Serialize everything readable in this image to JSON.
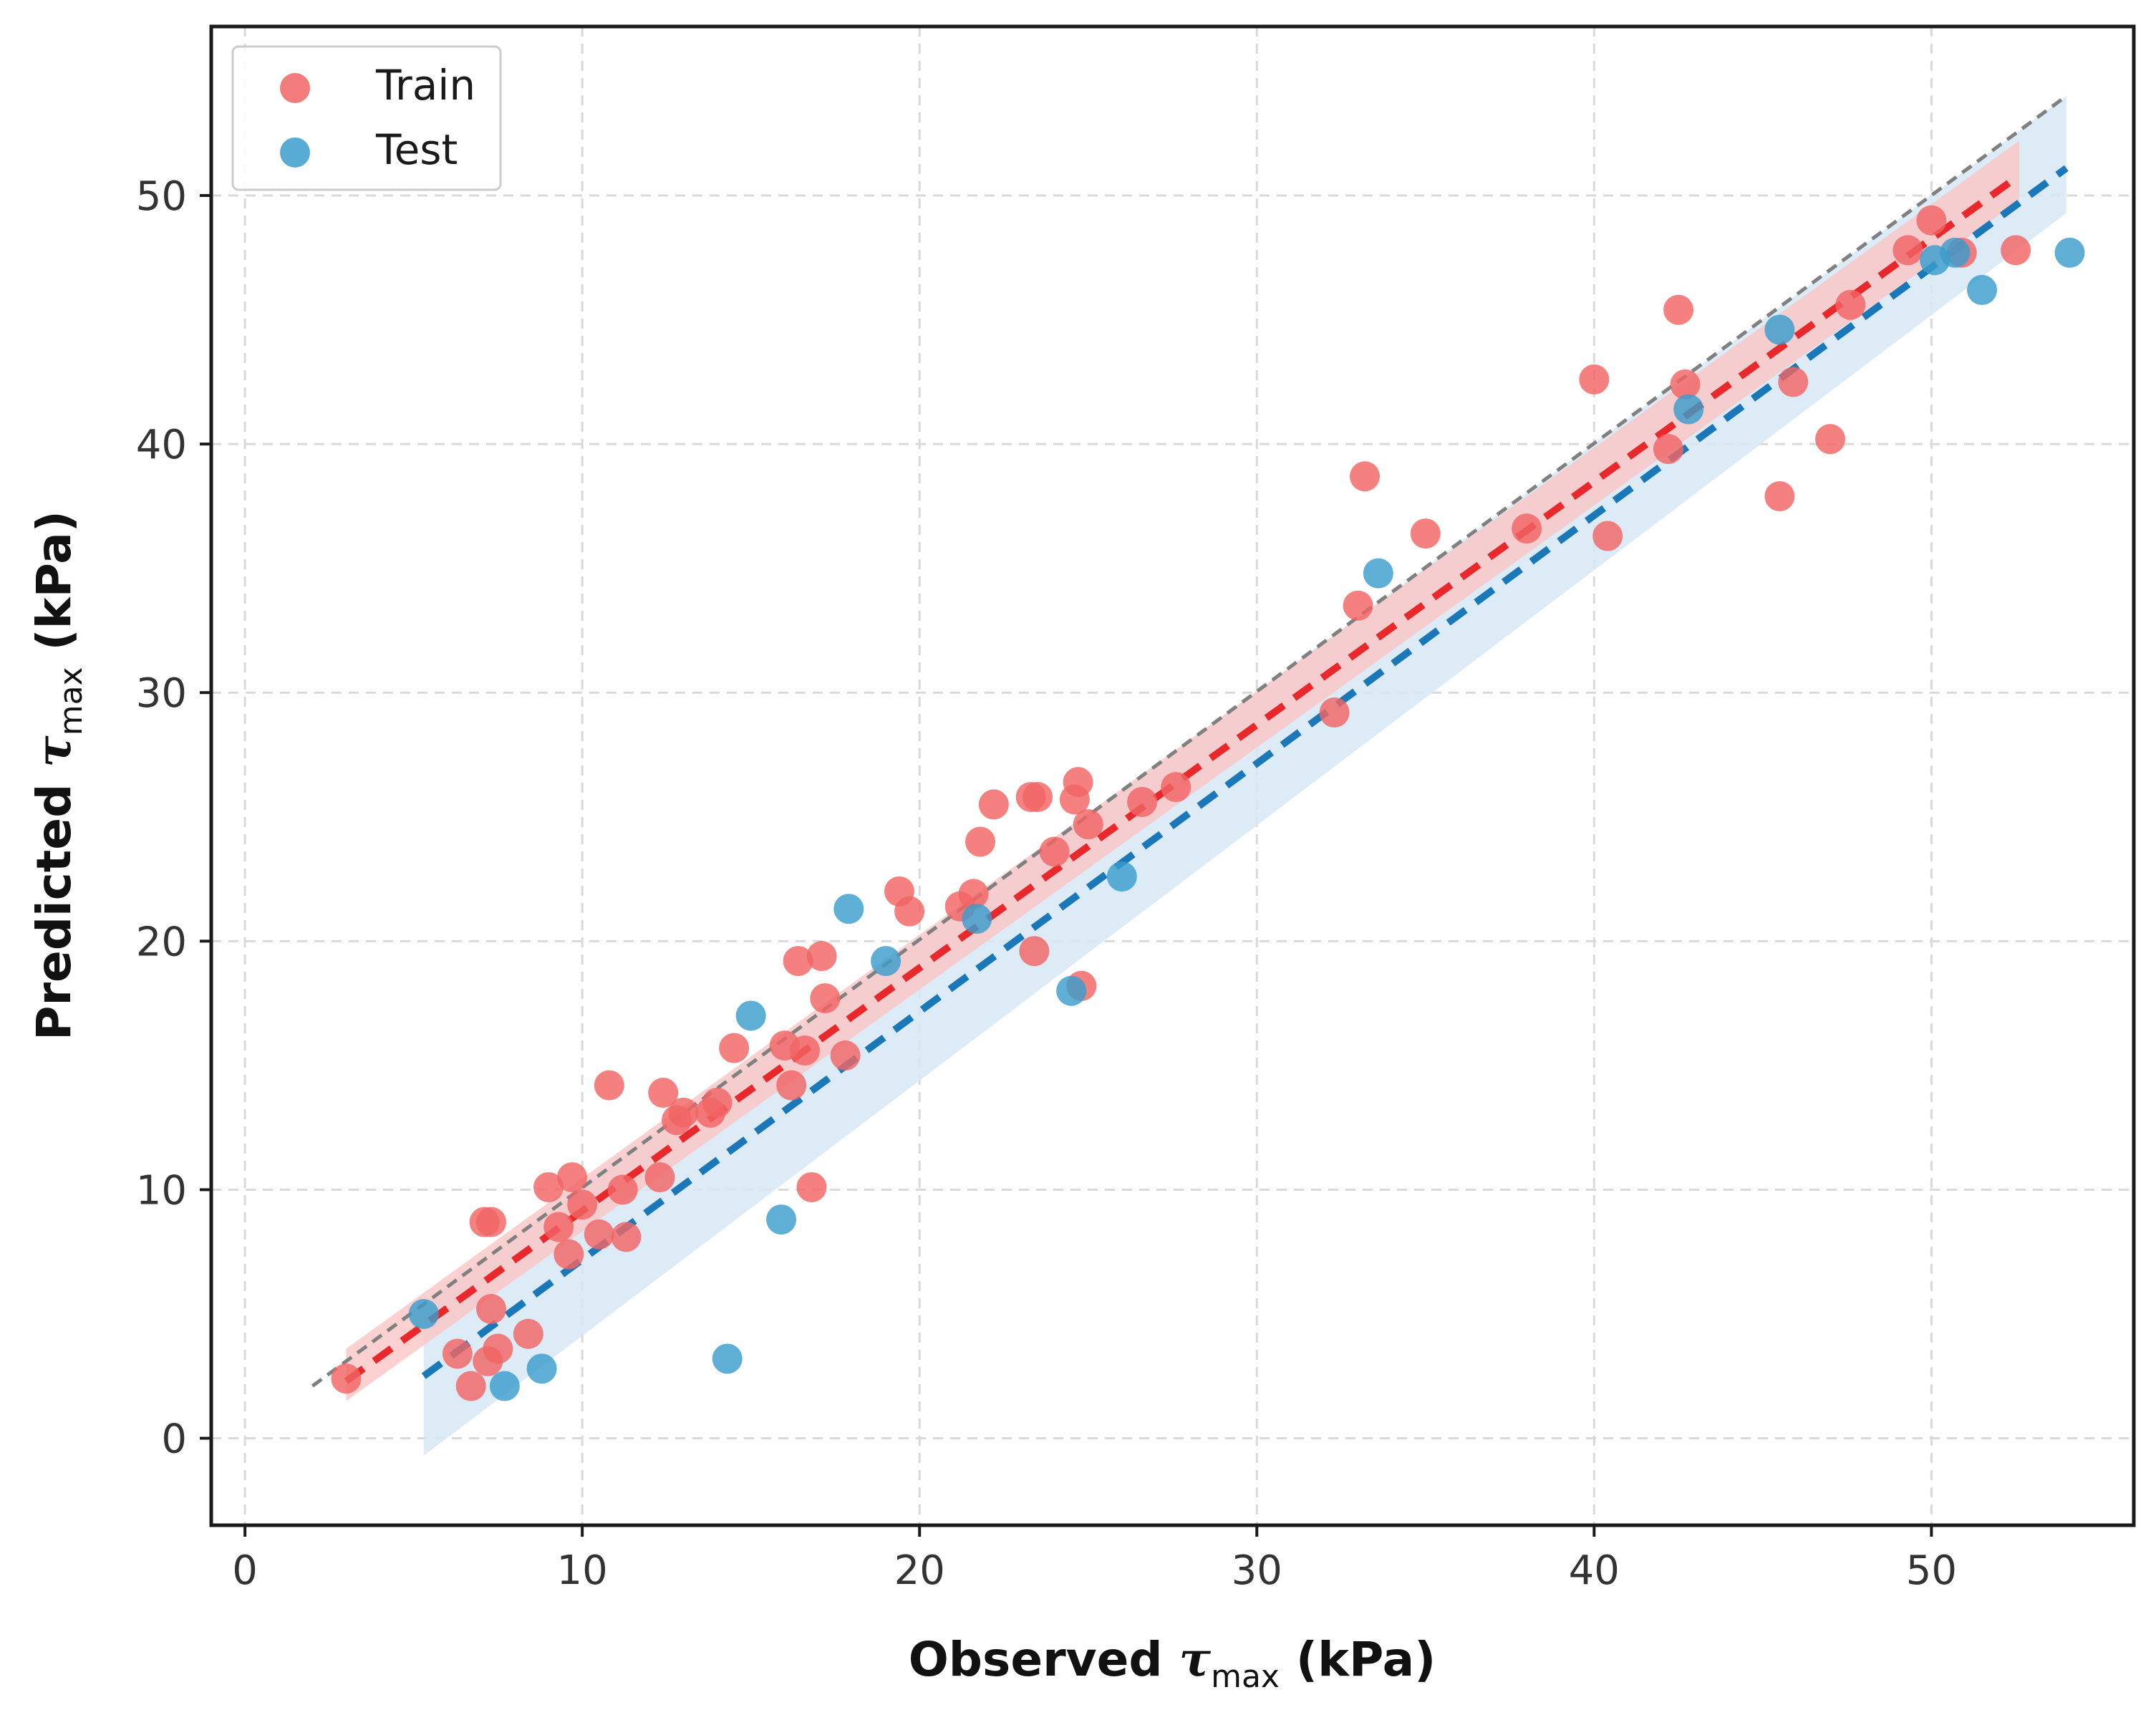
{
  "chart_data": {
    "type": "scatter",
    "title": "",
    "xlabel": {
      "main": "Observed ",
      "symbol": "τ",
      "sub": "max",
      "unit": " (kPa)"
    },
    "ylabel": {
      "main": "Predicted ",
      "symbol": "τ",
      "sub": "max",
      "unit": " (kPa)"
    },
    "xlim": [
      -1,
      56
    ],
    "ylim": [
      -3.5,
      56.8
    ],
    "xticks": [
      0,
      10,
      20,
      30,
      40,
      50
    ],
    "yticks": [
      0,
      10,
      20,
      30,
      40,
      50
    ],
    "xtick_labels": [
      "0",
      "10",
      "20",
      "30",
      "40",
      "50"
    ],
    "ytick_labels": [
      "0",
      "10",
      "20",
      "30",
      "40",
      "50"
    ],
    "grid": true,
    "legend_position": "top-left",
    "legend": [
      {
        "label": "Train",
        "color": "#f26464"
      },
      {
        "label": "Test",
        "color": "#3a9ccc"
      }
    ],
    "identity_line": {
      "x": [
        2,
        54
      ],
      "y": [
        2.1,
        54
      ],
      "color": "#808080"
    },
    "series": [
      {
        "name": "Train",
        "color": "#f26464",
        "fit": {
          "x": [
            3,
            52.6
          ],
          "y": [
            2.3,
            50.8
          ],
          "color": "#e8282a"
        },
        "band": {
          "x": [
            3,
            52.6
          ],
          "lower": [
            1.5,
            49.8
          ],
          "upper": [
            3.6,
            52.2
          ],
          "color": "#f9c8c8"
        },
        "points": [
          [
            3.0,
            2.4
          ],
          [
            6.3,
            3.4
          ],
          [
            6.7,
            2.1
          ],
          [
            7.1,
            8.7
          ],
          [
            7.3,
            8.7
          ],
          [
            7.2,
            3.1
          ],
          [
            7.5,
            3.6
          ],
          [
            7.3,
            5.2
          ],
          [
            8.4,
            4.2
          ],
          [
            9.0,
            10.1
          ],
          [
            9.3,
            8.5
          ],
          [
            9.6,
            7.4
          ],
          [
            9.7,
            10.5
          ],
          [
            10.0,
            9.4
          ],
          [
            10.5,
            8.2
          ],
          [
            10.8,
            14.2
          ],
          [
            11.2,
            10.0
          ],
          [
            11.3,
            8.1
          ],
          [
            12.3,
            10.5
          ],
          [
            12.4,
            13.9
          ],
          [
            12.8,
            12.8
          ],
          [
            13.0,
            13.1
          ],
          [
            13.8,
            13.1
          ],
          [
            14.0,
            13.5
          ],
          [
            14.5,
            15.7
          ],
          [
            16.0,
            15.8
          ],
          [
            16.2,
            14.2
          ],
          [
            16.4,
            19.2
          ],
          [
            16.6,
            15.6
          ],
          [
            16.8,
            10.1
          ],
          [
            17.1,
            19.4
          ],
          [
            17.2,
            17.7
          ],
          [
            17.8,
            15.4
          ],
          [
            19.4,
            22.0
          ],
          [
            19.7,
            21.2
          ],
          [
            21.2,
            21.4
          ],
          [
            21.6,
            21.9
          ],
          [
            21.8,
            24.0
          ],
          [
            22.2,
            25.5
          ],
          [
            23.3,
            25.8
          ],
          [
            23.5,
            25.8
          ],
          [
            23.4,
            19.6
          ],
          [
            24.0,
            23.6
          ],
          [
            24.6,
            25.7
          ],
          [
            24.7,
            26.4
          ],
          [
            24.8,
            18.2
          ],
          [
            25.0,
            24.7
          ],
          [
            26.6,
            25.6
          ],
          [
            27.6,
            26.2
          ],
          [
            32.3,
            29.2
          ],
          [
            33.0,
            33.5
          ],
          [
            33.2,
            38.7
          ],
          [
            35.0,
            36.4
          ],
          [
            38.0,
            36.6
          ],
          [
            40.0,
            42.6
          ],
          [
            40.4,
            36.3
          ],
          [
            42.2,
            39.8
          ],
          [
            42.5,
            45.4
          ],
          [
            42.7,
            42.4
          ],
          [
            45.5,
            37.9
          ],
          [
            45.9,
            42.5
          ],
          [
            47.0,
            40.2
          ],
          [
            47.6,
            45.6
          ],
          [
            49.3,
            47.8
          ],
          [
            50.0,
            49.0
          ],
          [
            50.9,
            47.7
          ],
          [
            52.5,
            47.8
          ]
        ]
      },
      {
        "name": "Test",
        "color": "#3a9ccc",
        "fit": {
          "x": [
            5.3,
            54.0
          ],
          "y": [
            2.5,
            51.1
          ],
          "color": "#1a78b8"
        },
        "band": {
          "x": [
            5.3,
            54.0
          ],
          "lower": [
            -0.7,
            49.3
          ],
          "upper": [
            5.4,
            54.0
          ],
          "color": "#d6e8f4"
        },
        "points": [
          [
            5.3,
            5.0
          ],
          [
            7.7,
            2.1
          ],
          [
            8.8,
            2.8
          ],
          [
            14.3,
            3.2
          ],
          [
            15.0,
            17.0
          ],
          [
            15.9,
            8.8
          ],
          [
            17.9,
            21.3
          ],
          [
            19.0,
            19.2
          ],
          [
            21.7,
            20.9
          ],
          [
            24.5,
            18.0
          ],
          [
            26.0,
            22.6
          ],
          [
            33.6,
            34.8
          ],
          [
            42.8,
            41.4
          ],
          [
            45.5,
            44.6
          ],
          [
            50.1,
            47.4
          ],
          [
            50.7,
            47.7
          ],
          [
            51.5,
            46.2
          ],
          [
            54.1,
            47.7
          ]
        ]
      }
    ]
  }
}
